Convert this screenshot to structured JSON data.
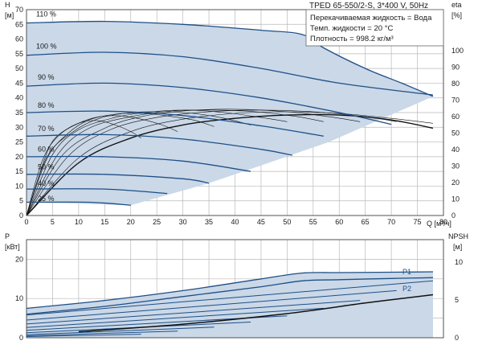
{
  "header": {
    "title": "TPED 65-550/2-S, 3*400 V, 50Hz",
    "liquid_lines": [
      "Перекачиваемая жидкость = Вода",
      "Темп. жидкости = 20 °C",
      "Плотность = 998.2 кг/м³"
    ]
  },
  "chart_data": [
    {
      "type": "line",
      "x_axis": {
        "label": "Q [м³/ч]",
        "ticks": [
          0,
          5,
          10,
          15,
          20,
          25,
          30,
          35,
          40,
          45,
          50,
          55,
          60,
          65,
          70,
          75,
          80
        ],
        "range": [
          0,
          80
        ]
      },
      "y_axis_left": {
        "label": "H",
        "unit": "[м]",
        "ticks": [
          0,
          5,
          10,
          15,
          20,
          25,
          30,
          35,
          40,
          45,
          50,
          55,
          60,
          65,
          70
        ],
        "range": [
          0,
          70
        ]
      },
      "y_axis_right": {
        "label": "eta",
        "unit": "[%]",
        "ticks": [
          0,
          10,
          20,
          30,
          40,
          50,
          60,
          70,
          80,
          90,
          100
        ],
        "range": [
          0,
          125
        ]
      },
      "grid": true,
      "series": [
        {
          "name": "110 %",
          "x": [
            0,
            15,
            30,
            45,
            53,
            57,
            65,
            72,
            78
          ],
          "y": [
            65.5,
            66,
            65,
            63,
            61.5,
            57,
            50,
            45,
            40.5
          ]
        },
        {
          "name": "100 %",
          "x": [
            0,
            15,
            30,
            45,
            60,
            78
          ],
          "y": [
            54.5,
            55.5,
            54,
            50,
            45,
            41
          ]
        },
        {
          "name": "90 %",
          "x": [
            0,
            15,
            30,
            45,
            60,
            70
          ],
          "y": [
            44,
            45,
            43.5,
            40,
            35,
            31
          ]
        },
        {
          "name": "80 %",
          "x": [
            0,
            15,
            30,
            45,
            57
          ],
          "y": [
            35,
            35.5,
            34,
            30.5,
            27
          ]
        },
        {
          "name": "70 %",
          "x": [
            0,
            15,
            30,
            45,
            51
          ],
          "y": [
            27,
            27.5,
            26,
            22.5,
            20.5
          ]
        },
        {
          "name": "60 %",
          "x": [
            0,
            15,
            30,
            43
          ],
          "y": [
            20,
            20,
            18.5,
            15
          ]
        },
        {
          "name": "50 %",
          "x": [
            0,
            15,
            30,
            35
          ],
          "y": [
            14,
            14,
            12.5,
            11
          ]
        },
        {
          "name": "40 %",
          "x": [
            0,
            15,
            27
          ],
          "y": [
            9,
            9,
            7.5
          ]
        },
        {
          "name": "",
          "x": [
            0,
            12,
            20
          ],
          "y": [
            4.5,
            4.5,
            3.5
          ]
        }
      ],
      "efficiency_curves_eta_percent": [
        {
          "x": [
            0,
            10,
            20,
            30,
            40,
            50,
            60,
            70,
            78
          ],
          "y": [
            0,
            32,
            47,
            55,
            59,
            61,
            61,
            58,
            53
          ]
        },
        {
          "x": [
            0,
            10,
            20,
            30,
            40,
            50,
            60,
            70,
            78
          ],
          "y": [
            0,
            35,
            51,
            58.5,
            62,
            63,
            62,
            59,
            56
          ]
        },
        {
          "x": [
            0,
            8,
            16,
            25,
            35,
            45,
            55,
            65,
            71
          ],
          "y": [
            0,
            36,
            52,
            59.5,
            63,
            64,
            63,
            60,
            57
          ]
        },
        {
          "x": [
            0,
            7,
            15,
            22,
            30,
            40,
            50,
            58,
            64
          ],
          "y": [
            0,
            37,
            53,
            60,
            63.5,
            64.5,
            63,
            60,
            57
          ]
        },
        {
          "x": [
            0,
            6,
            12,
            20,
            28,
            36,
            44,
            52,
            57
          ],
          "y": [
            0,
            37,
            53,
            60,
            63.5,
            64,
            63,
            60,
            57
          ]
        },
        {
          "x": [
            0,
            5,
            10,
            17,
            24,
            31,
            38,
            44,
            50
          ],
          "y": [
            0,
            37,
            52,
            59.5,
            63,
            64,
            62.5,
            60,
            57
          ]
        },
        {
          "x": [
            0,
            4,
            9,
            14,
            20,
            26,
            32,
            38,
            43
          ],
          "y": [
            0,
            36,
            51,
            59,
            62.5,
            63,
            62,
            59,
            55
          ]
        },
        {
          "x": [
            0,
            4,
            8,
            12,
            17,
            22,
            27,
            32,
            36
          ],
          "y": [
            0,
            35,
            50,
            58,
            61.5,
            62,
            60.5,
            58,
            54
          ]
        },
        {
          "x": [
            0,
            3,
            6,
            10,
            14,
            18,
            22,
            26,
            29
          ],
          "y": [
            0,
            33,
            48,
            56,
            60,
            60.5,
            58.5,
            55,
            51
          ]
        },
        {
          "x": [
            0,
            3,
            5,
            8,
            11,
            14,
            17,
            20,
            22
          ],
          "y": [
            0,
            30,
            45,
            53,
            57,
            57.5,
            55,
            51,
            47
          ]
        }
      ],
      "shaded_envelope": {
        "x": [
          0,
          15,
          30,
          45,
          53,
          57,
          65,
          72,
          78,
          58,
          45,
          35,
          20,
          0
        ],
        "y": [
          65.5,
          66,
          65,
          63,
          61.5,
          57,
          50,
          45,
          40.5,
          25,
          17,
          11,
          3.5,
          4.5
        ]
      },
      "percent_labels": [
        "110 %",
        "100 %",
        "90 %",
        "80 %",
        "70 %",
        "60 %",
        "50 %",
        "40 %",
        "25 %"
      ]
    },
    {
      "type": "line",
      "x_axis": {
        "range": [
          0,
          80
        ]
      },
      "y_axis_left": {
        "label": "P",
        "unit": "[кВт]",
        "ticks": [
          0,
          10,
          20
        ],
        "range": [
          0,
          25
        ]
      },
      "y_axis_right": {
        "label": "NPSH",
        "unit": "[м]",
        "ticks": [
          0,
          5,
          10
        ],
        "range": [
          0,
          13
        ]
      },
      "grid": true,
      "series": [
        {
          "name": "P1",
          "x": [
            0,
            15,
            30,
            45,
            53,
            60,
            70,
            78
          ],
          "y": [
            7.5,
            9.5,
            12,
            15,
            16.5,
            16.6,
            16.7,
            16.8
          ]
        },
        {
          "name": "P2",
          "x": [
            0,
            15,
            30,
            45,
            53,
            60,
            70,
            78
          ],
          "y": [
            6,
            8,
            10.5,
            13,
            14.5,
            14.8,
            15.1,
            15.3
          ]
        },
        {
          "name": "NPSH",
          "x": [
            10,
            30,
            50,
            65,
            78
          ],
          "y": [
            0.8,
            1.8,
            3.2,
            4.6,
            5.7
          ]
        }
      ],
      "power_family": [
        {
          "x": [
            0,
            78
          ],
          "y": [
            5.8,
            14.5
          ]
        },
        {
          "x": [
            0,
            71
          ],
          "y": [
            4.5,
            12
          ]
        },
        {
          "x": [
            0,
            64
          ],
          "y": [
            3.5,
            9.5
          ]
        },
        {
          "x": [
            0,
            57
          ],
          "y": [
            2.6,
            7.5
          ]
        },
        {
          "x": [
            0,
            50
          ],
          "y": [
            1.9,
            5.6
          ]
        },
        {
          "x": [
            0,
            43
          ],
          "y": [
            1.3,
            4
          ]
        },
        {
          "x": [
            0,
            36
          ],
          "y": [
            0.8,
            2.7
          ]
        },
        {
          "x": [
            0,
            29
          ],
          "y": [
            0.5,
            1.7
          ]
        },
        {
          "x": [
            0,
            22
          ],
          "y": [
            0.3,
            0.9
          ]
        }
      ],
      "labels": [
        "P1",
        "P2"
      ]
    }
  ]
}
